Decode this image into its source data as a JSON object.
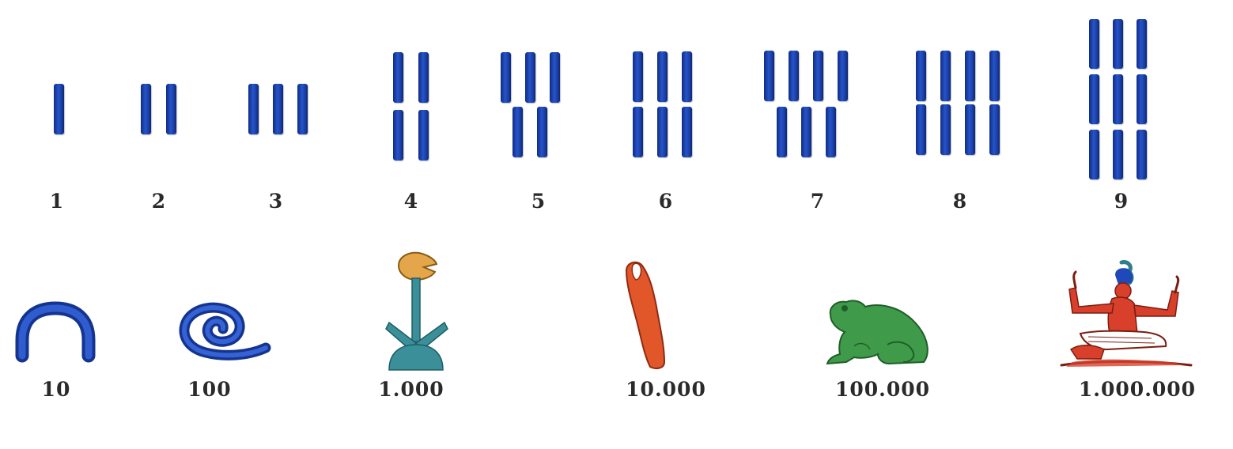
{
  "colors": {
    "stroke_blue": "#1f49b8",
    "flower_orange": "#e3a64a",
    "stem_teal": "#3a8f99",
    "finger_orange": "#e2572a",
    "frog_green": "#3f9b4a",
    "god_red": "#d8402c"
  },
  "numerals_row": [
    {
      "value": "1",
      "strokes": 1
    },
    {
      "value": "2",
      "strokes": 2
    },
    {
      "value": "3",
      "strokes": 3
    },
    {
      "value": "4",
      "strokes": 4
    },
    {
      "value": "5",
      "strokes": 5
    },
    {
      "value": "6",
      "strokes": 6
    },
    {
      "value": "7",
      "strokes": 7
    },
    {
      "value": "8",
      "strokes": 8
    },
    {
      "value": "9",
      "strokes": 9
    }
  ],
  "powers_row": [
    {
      "value": "10",
      "icon": "heel-bone-arch-icon"
    },
    {
      "value": "100",
      "icon": "coil-of-rope-icon"
    },
    {
      "value": "1.000",
      "icon": "lotus-plant-icon"
    },
    {
      "value": "10.000",
      "icon": "finger-icon"
    },
    {
      "value": "100.000",
      "icon": "frog-icon"
    },
    {
      "value": "1.000.000",
      "icon": "heh-god-icon"
    }
  ]
}
